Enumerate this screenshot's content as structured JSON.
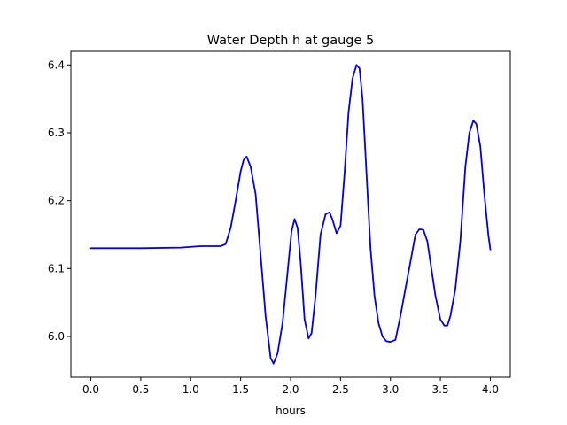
{
  "chart_data": {
    "type": "line",
    "title": "Water Depth h at gauge 5",
    "xlabel": "hours",
    "ylabel": "",
    "xlim": [
      -0.2,
      4.2
    ],
    "ylim": [
      5.94,
      6.42
    ],
    "grid": false,
    "xticks": [
      0.0,
      0.5,
      1.0,
      1.5,
      2.0,
      2.5,
      3.0,
      3.5,
      4.0
    ],
    "xtick_labels": [
      "0.0",
      "0.5",
      "1.0",
      "1.5",
      "2.0",
      "2.5",
      "3.0",
      "3.5",
      "4.0"
    ],
    "yticks": [
      6.0,
      6.1,
      6.2,
      6.3,
      6.4
    ],
    "ytick_labels": [
      "6.0",
      "6.1",
      "6.2",
      "6.3",
      "6.4"
    ],
    "colors": {
      "line": "#0000ee",
      "axes": "#000000",
      "background": "#ffffff"
    },
    "series": [
      {
        "x": [
          0.0,
          0.5,
          0.9,
          1.1,
          1.3,
          1.35,
          1.4,
          1.45,
          1.5,
          1.53,
          1.56,
          1.6,
          1.65,
          1.7,
          1.75,
          1.8,
          1.83,
          1.87,
          1.92,
          1.97,
          2.01,
          2.04,
          2.07,
          2.1,
          2.14,
          2.18,
          2.21,
          2.25,
          2.3,
          2.35,
          2.39,
          2.42,
          2.46,
          2.5,
          2.54,
          2.58,
          2.62,
          2.66,
          2.69,
          2.72,
          2.76,
          2.8,
          2.84,
          2.88,
          2.92,
          2.96,
          3.0,
          3.05,
          3.1,
          3.15,
          3.2,
          3.25,
          3.29,
          3.33,
          3.37,
          3.41,
          3.45,
          3.5,
          3.54,
          3.57,
          3.6,
          3.65,
          3.7,
          3.75,
          3.79,
          3.83,
          3.86,
          3.9,
          3.94,
          3.98,
          4.0
        ],
        "y": [
          6.13,
          6.13,
          6.131,
          6.133,
          6.133,
          6.136,
          6.16,
          6.2,
          6.243,
          6.26,
          6.265,
          6.25,
          6.21,
          6.12,
          6.03,
          5.968,
          5.96,
          5.975,
          6.02,
          6.095,
          6.155,
          6.173,
          6.16,
          6.11,
          6.025,
          5.997,
          6.005,
          6.06,
          6.15,
          6.18,
          6.183,
          6.172,
          6.152,
          6.163,
          6.24,
          6.33,
          6.38,
          6.4,
          6.395,
          6.35,
          6.24,
          6.13,
          6.06,
          6.02,
          6.0,
          5.993,
          5.992,
          5.995,
          6.03,
          6.07,
          6.11,
          6.15,
          6.158,
          6.157,
          6.14,
          6.1,
          6.06,
          6.025,
          6.016,
          6.016,
          6.03,
          6.07,
          6.14,
          6.25,
          6.3,
          6.318,
          6.313,
          6.28,
          6.21,
          6.15,
          6.128
        ]
      }
    ]
  }
}
